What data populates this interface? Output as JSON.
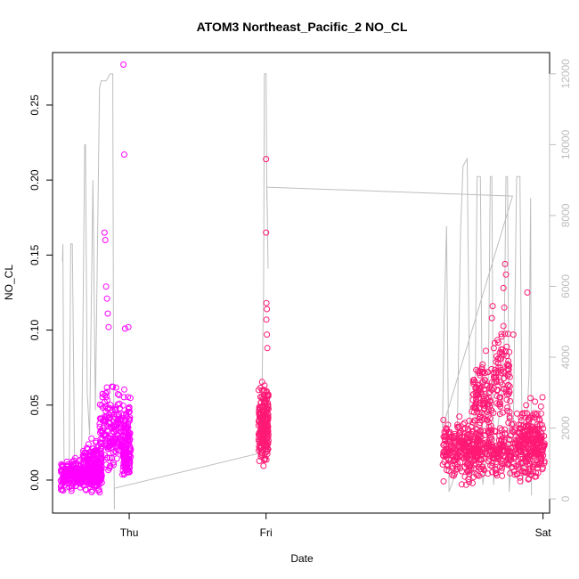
{
  "chart_data": {
    "type": "scatter",
    "title": "ATOM3 Northeast_Pacific_2 NO_CL",
    "xlabel": "Date",
    "ylabel": "NO_CL",
    "x_ticks": [
      "Thu",
      "Fri",
      "Sat"
    ],
    "y_ticks": [
      "0.00",
      "0.05",
      "0.10",
      "0.15",
      "0.20",
      "0.25"
    ],
    "ylim": [
      -0.022,
      0.285
    ],
    "y2_ticks": [
      "0",
      "2000",
      "4000",
      "6000",
      "8000",
      "10000",
      "12000"
    ],
    "y2lim": [
      -400,
      12600
    ],
    "point_colors": [
      "#ff00ff",
      "#ff1a75"
    ],
    "line_color": "#bebebe",
    "xlim_hours": [
      -25.5,
      34.8
    ],
    "series": [
      {
        "kind": "points",
        "segments": [
          {
            "x_range": [
              -24.5,
              -19.5
            ],
            "y_center": 0.003,
            "y_spread": 0.008,
            "color": "#ff00ff",
            "count": 320
          },
          {
            "x_range": [
              -21.8,
              -19.6
            ],
            "y_center": 0.013,
            "y_spread": 0.012,
            "color": "#ff00ff",
            "count": 130
          },
          {
            "x_range": [
              -19.8,
              -16.0
            ],
            "y_center": 0.032,
            "y_spread": 0.022,
            "color": "#ff00ff",
            "count": 260
          },
          {
            "x_range": [
              -17.0,
              -16.1
            ],
            "y_center": 0.012,
            "y_spread": 0.008,
            "color": "#ff00ff",
            "count": 60
          },
          {
            "x_range": [
              -0.5,
              0.7
            ],
            "y_center": 0.038,
            "y_spread": 0.022,
            "color": "#ff1a75",
            "count": 220
          },
          {
            "x_range": [
              21.8,
              34.2
            ],
            "y_center": 0.02,
            "y_spread": 0.016,
            "color": "#ff1a75",
            "count": 620
          },
          {
            "x_range": [
              25.5,
              27.8
            ],
            "y_center": 0.055,
            "y_spread": 0.02,
            "color": "#ff1a75",
            "count": 120
          },
          {
            "x_range": [
              28.0,
              30.0
            ],
            "y_center": 0.07,
            "y_spread": 0.03,
            "color": "#ff1a75",
            "count": 90
          },
          {
            "x_range": [
              31.0,
              34.0
            ],
            "y_center": 0.03,
            "y_spread": 0.02,
            "color": "#ff1a75",
            "count": 120
          }
        ],
        "outliers": [
          {
            "x": -19.2,
            "y": 0.165
          },
          {
            "x": -19.1,
            "y": 0.16
          },
          {
            "x": -19.0,
            "y": 0.129
          },
          {
            "x": -18.9,
            "y": 0.121
          },
          {
            "x": -18.8,
            "y": 0.111
          },
          {
            "x": -18.7,
            "y": 0.102
          },
          {
            "x": -16.9,
            "y": 0.277
          },
          {
            "x": -16.8,
            "y": 0.217
          },
          {
            "x": -16.7,
            "y": 0.101
          },
          {
            "x": -16.3,
            "y": 0.102
          },
          {
            "x": 0.4,
            "y": 0.214
          },
          {
            "x": 0.4,
            "y": 0.165
          },
          {
            "x": 0.45,
            "y": 0.118
          },
          {
            "x": 0.5,
            "y": 0.114
          },
          {
            "x": 0.45,
            "y": 0.107
          },
          {
            "x": 0.5,
            "y": 0.097
          },
          {
            "x": 0.55,
            "y": 0.088
          },
          {
            "x": 27.9,
            "y": 0.116
          },
          {
            "x": 27.8,
            "y": 0.108
          },
          {
            "x": 29.4,
            "y": 0.144
          },
          {
            "x": 29.5,
            "y": 0.137
          },
          {
            "x": 29.2,
            "y": 0.128
          },
          {
            "x": 29.3,
            "y": 0.115
          },
          {
            "x": 30.4,
            "y": 0.097
          },
          {
            "x": 32.1,
            "y": 0.125
          }
        ]
      },
      {
        "kind": "line",
        "axis": "right",
        "points": [
          [
            -24.3,
            6700
          ],
          [
            -24.25,
            7200
          ],
          [
            -24.1,
            200
          ],
          [
            -23.5,
            300
          ],
          [
            -23.3,
            7200
          ],
          [
            -23.1,
            7200
          ],
          [
            -22.8,
            400
          ],
          [
            -22.0,
            600
          ],
          [
            -21.6,
            10000
          ],
          [
            -21.5,
            10000
          ],
          [
            -21.3,
            3000
          ],
          [
            -21.0,
            1800
          ],
          [
            -20.6,
            9000
          ],
          [
            -20.3,
            2500
          ],
          [
            -19.8,
            11600
          ],
          [
            -19.6,
            11800
          ],
          [
            -19.0,
            11800
          ],
          [
            -18.5,
            12000
          ],
          [
            -18.2,
            12000
          ],
          [
            -18.1,
            3500
          ],
          [
            -18.0,
            -300
          ],
          [
            -18.0,
            300
          ],
          [
            -0.2,
            1300
          ],
          [
            0.0,
            4500
          ],
          [
            0.1,
            5800
          ],
          [
            0.2,
            12000
          ],
          [
            0.25,
            12000
          ],
          [
            0.4,
            12000
          ],
          [
            0.5,
            8500
          ],
          [
            0.55,
            8200
          ],
          [
            0.6,
            7200
          ],
          [
            0.65,
            6500
          ],
          [
            0.5,
            8800
          ],
          [
            30.3,
            8550
          ],
          [
            21.8,
            2000
          ],
          [
            22.0,
            5000
          ],
          [
            22.3,
            7700
          ],
          [
            22.6,
            200
          ],
          [
            23.2,
            600
          ],
          [
            23.6,
            2000
          ],
          [
            24.0,
            7600
          ],
          [
            24.3,
            9400
          ],
          [
            24.8,
            9600
          ],
          [
            25.2,
            400
          ],
          [
            25.7,
            1200
          ],
          [
            26.0,
            9100
          ],
          [
            26.4,
            9100
          ],
          [
            26.7,
            400
          ],
          [
            27.3,
            1500
          ],
          [
            27.6,
            9100
          ],
          [
            27.8,
            9100
          ],
          [
            28.0,
            400
          ],
          [
            28.5,
            2000
          ],
          [
            29.0,
            3000
          ],
          [
            29.3,
            4500
          ],
          [
            29.5,
            9100
          ],
          [
            29.7,
            9100
          ],
          [
            29.9,
            200
          ],
          [
            30.4,
            2000
          ],
          [
            30.8,
            9100
          ],
          [
            31.2,
            9100
          ],
          [
            31.5,
            400
          ],
          [
            32.0,
            2000
          ],
          [
            32.3,
            3500
          ],
          [
            32.5,
            8500
          ],
          [
            32.6,
            100
          ]
        ]
      }
    ]
  }
}
